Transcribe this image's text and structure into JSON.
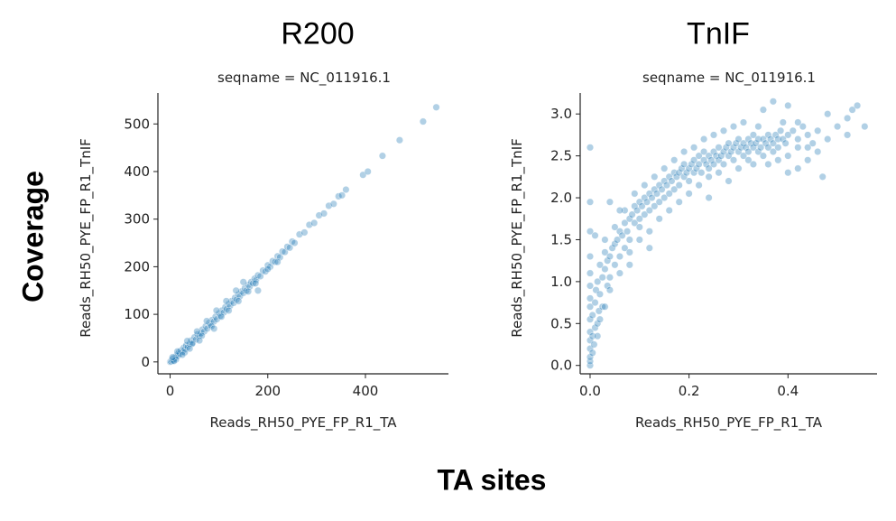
{
  "figure": {
    "ylabel": "Coverage",
    "xlabel": "TA sites"
  },
  "chart_data": [
    {
      "type": "scatter",
      "title": "R200",
      "facet_title": "seqname = NC_011916.1",
      "xlabel": "Reads_RH50_PYE_FP_R1_TA",
      "ylabel": "Reads_RH50_PYE_FP_R1_TnIF",
      "xlim": [
        -25,
        570
      ],
      "ylim": [
        -25,
        565
      ],
      "xticks": [
        0,
        200,
        400
      ],
      "yticks": [
        0,
        100,
        200,
        300,
        400,
        500
      ],
      "color": "#1f77b4",
      "points": [
        [
          0,
          0
        ],
        [
          1,
          1
        ],
        [
          2,
          1
        ],
        [
          3,
          4
        ],
        [
          4,
          2
        ],
        [
          5,
          6
        ],
        [
          6,
          3
        ],
        [
          8,
          9
        ],
        [
          10,
          7
        ],
        [
          12,
          11
        ],
        [
          14,
          15
        ],
        [
          16,
          13
        ],
        [
          18,
          20
        ],
        [
          20,
          17
        ],
        [
          22,
          24
        ],
        [
          25,
          21
        ],
        [
          28,
          30
        ],
        [
          30,
          26
        ],
        [
          33,
          35
        ],
        [
          36,
          31
        ],
        [
          40,
          38
        ],
        [
          43,
          45
        ],
        [
          46,
          40
        ],
        [
          50,
          52
        ],
        [
          53,
          47
        ],
        [
          56,
          58
        ],
        [
          60,
          55
        ],
        [
          63,
          60
        ],
        [
          66,
          68
        ],
        [
          70,
          64
        ],
        [
          73,
          75
        ],
        [
          76,
          70
        ],
        [
          80,
          82
        ],
        [
          83,
          78
        ],
        [
          86,
          88
        ],
        [
          90,
          85
        ],
        [
          93,
          95
        ],
        [
          96,
          90
        ],
        [
          100,
          102
        ],
        [
          103,
          97
        ],
        [
          106,
          108
        ],
        [
          110,
          104
        ],
        [
          113,
          115
        ],
        [
          116,
          111
        ],
        [
          120,
          122
        ],
        [
          123,
          118
        ],
        [
          126,
          128
        ],
        [
          130,
          124
        ],
        [
          133,
          135
        ],
        [
          136,
          131
        ],
        [
          140,
          142
        ],
        [
          143,
          138
        ],
        [
          146,
          148
        ],
        [
          150,
          145
        ],
        [
          153,
          155
        ],
        [
          156,
          150
        ],
        [
          160,
          162
        ],
        [
          163,
          158
        ],
        [
          166,
          168
        ],
        [
          170,
          165
        ],
        [
          173,
          175
        ],
        [
          176,
          172
        ],
        [
          180,
          182
        ],
        [
          185,
          180
        ],
        [
          190,
          192
        ],
        [
          195,
          190
        ],
        [
          200,
          203
        ],
        [
          205,
          200
        ],
        [
          210,
          212
        ],
        [
          215,
          210
        ],
        [
          220,
          222
        ],
        [
          225,
          220
        ],
        [
          230,
          232
        ],
        [
          235,
          231
        ],
        [
          240,
          242
        ],
        [
          245,
          240
        ],
        [
          250,
          253
        ],
        [
          255,
          250
        ],
        [
          265,
          268
        ],
        [
          275,
          272
        ],
        [
          285,
          288
        ],
        [
          295,
          292
        ],
        [
          305,
          308
        ],
        [
          315,
          312
        ],
        [
          325,
          328
        ],
        [
          335,
          332
        ],
        [
          345,
          348
        ],
        [
          352,
          350
        ],
        [
          360,
          362
        ],
        [
          395,
          393
        ],
        [
          405,
          400
        ],
        [
          435,
          433
        ],
        [
          470,
          466
        ],
        [
          518,
          505
        ],
        [
          545,
          535
        ],
        [
          12,
          5
        ],
        [
          30,
          20
        ],
        [
          45,
          38
        ],
        [
          65,
          55
        ],
        [
          85,
          75
        ],
        [
          105,
          95
        ],
        [
          120,
          108
        ],
        [
          140,
          128
        ],
        [
          160,
          148
        ],
        [
          175,
          165
        ],
        [
          15,
          22
        ],
        [
          35,
          44
        ],
        [
          55,
          64
        ],
        [
          75,
          86
        ],
        [
          95,
          108
        ],
        [
          115,
          128
        ],
        [
          135,
          150
        ],
        [
          150,
          168
        ],
        [
          200,
          195
        ],
        [
          180,
          150
        ],
        [
          220,
          210
        ],
        [
          90,
          70
        ],
        [
          60,
          45
        ],
        [
          40,
          28
        ],
        [
          25,
          15
        ],
        [
          8,
          2
        ],
        [
          5,
          10
        ]
      ]
    },
    {
      "type": "scatter",
      "title": "TnIF",
      "facet_title": "seqname = NC_011916.1",
      "xlabel": "Reads_RH50_PYE_FP_R1_TA",
      "ylabel": "Reads_RH50_PYE_FP_R1_TnIF",
      "xlim": [
        -0.02,
        0.58
      ],
      "ylim": [
        -0.1,
        3.25
      ],
      "xticks": [
        "0.0",
        "0.2",
        "0.4"
      ],
      "yticks": [
        "0.0",
        "0.5",
        "1.0",
        "1.5",
        "2.0",
        "2.5",
        "3.0"
      ],
      "color": "#1f77b4",
      "points": [
        [
          0,
          0
        ],
        [
          0,
          0.05
        ],
        [
          0,
          0.1
        ],
        [
          0,
          0.2
        ],
        [
          0,
          0.3
        ],
        [
          0,
          0.4
        ],
        [
          0,
          0.55
        ],
        [
          0,
          0.7
        ],
        [
          0,
          0.8
        ],
        [
          0,
          0.95
        ],
        [
          0,
          1.1
        ],
        [
          0,
          1.3
        ],
        [
          0,
          1.6
        ],
        [
          0,
          2.6
        ],
        [
          0.005,
          0.15
        ],
        [
          0.005,
          0.35
        ],
        [
          0.005,
          0.6
        ],
        [
          0.008,
          0.25
        ],
        [
          0.01,
          0.45
        ],
        [
          0.01,
          0.75
        ],
        [
          0.012,
          0.9
        ],
        [
          0.015,
          0.5
        ],
        [
          0.015,
          1.0
        ],
        [
          0.018,
          0.65
        ],
        [
          0.02,
          1.2
        ],
        [
          0.02,
          0.85
        ],
        [
          0.025,
          1.05
        ],
        [
          0.025,
          0.7
        ],
        [
          0.03,
          1.15
        ],
        [
          0.03,
          1.35
        ],
        [
          0.035,
          0.95
        ],
        [
          0.035,
          1.25
        ],
        [
          0.04,
          1.3
        ],
        [
          0.04,
          1.05
        ],
        [
          0.045,
          1.4
        ],
        [
          0.05,
          1.2
        ],
        [
          0.05,
          1.45
        ],
        [
          0.055,
          1.5
        ],
        [
          0.06,
          1.3
        ],
        [
          0.06,
          1.6
        ],
        [
          0.065,
          1.55
        ],
        [
          0.07,
          1.4
        ],
        [
          0.07,
          1.7
        ],
        [
          0.075,
          1.6
        ],
        [
          0.08,
          1.75
        ],
        [
          0.08,
          1.5
        ],
        [
          0.085,
          1.8
        ],
        [
          0.09,
          1.7
        ],
        [
          0.09,
          1.9
        ],
        [
          0.095,
          1.85
        ],
        [
          0.1,
          1.75
        ],
        [
          0.1,
          1.95
        ],
        [
          0.105,
          1.9
        ],
        [
          0.11,
          2.0
        ],
        [
          0.11,
          1.8
        ],
        [
          0.115,
          1.95
        ],
        [
          0.12,
          2.05
        ],
        [
          0.12,
          1.85
        ],
        [
          0.125,
          2.0
        ],
        [
          0.13,
          2.1
        ],
        [
          0.13,
          1.9
        ],
        [
          0.135,
          2.05
        ],
        [
          0.14,
          2.15
        ],
        [
          0.14,
          1.95
        ],
        [
          0.145,
          2.1
        ],
        [
          0.15,
          2.2
        ],
        [
          0.15,
          2.0
        ],
        [
          0.155,
          2.15
        ],
        [
          0.16,
          2.25
        ],
        [
          0.16,
          2.05
        ],
        [
          0.165,
          2.2
        ],
        [
          0.17,
          2.3
        ],
        [
          0.17,
          2.1
        ],
        [
          0.175,
          2.25
        ],
        [
          0.18,
          2.3
        ],
        [
          0.18,
          2.15
        ],
        [
          0.185,
          2.35
        ],
        [
          0.19,
          2.25
        ],
        [
          0.19,
          2.4
        ],
        [
          0.195,
          2.3
        ],
        [
          0.2,
          2.35
        ],
        [
          0.2,
          2.2
        ],
        [
          0.205,
          2.4
        ],
        [
          0.21,
          2.3
        ],
        [
          0.21,
          2.45
        ],
        [
          0.215,
          2.35
        ],
        [
          0.22,
          2.4
        ],
        [
          0.22,
          2.5
        ],
        [
          0.225,
          2.3
        ],
        [
          0.23,
          2.45
        ],
        [
          0.23,
          2.55
        ],
        [
          0.235,
          2.4
        ],
        [
          0.24,
          2.5
        ],
        [
          0.24,
          2.35
        ],
        [
          0.245,
          2.45
        ],
        [
          0.25,
          2.55
        ],
        [
          0.25,
          2.4
        ],
        [
          0.255,
          2.5
        ],
        [
          0.26,
          2.45
        ],
        [
          0.26,
          2.6
        ],
        [
          0.265,
          2.5
        ],
        [
          0.27,
          2.55
        ],
        [
          0.27,
          2.4
        ],
        [
          0.275,
          2.6
        ],
        [
          0.28,
          2.5
        ],
        [
          0.28,
          2.65
        ],
        [
          0.285,
          2.55
        ],
        [
          0.29,
          2.6
        ],
        [
          0.29,
          2.45
        ],
        [
          0.295,
          2.65
        ],
        [
          0.3,
          2.55
        ],
        [
          0.3,
          2.7
        ],
        [
          0.305,
          2.6
        ],
        [
          0.31,
          2.5
        ],
        [
          0.31,
          2.65
        ],
        [
          0.315,
          2.6
        ],
        [
          0.32,
          2.7
        ],
        [
          0.32,
          2.55
        ],
        [
          0.325,
          2.65
        ],
        [
          0.33,
          2.6
        ],
        [
          0.33,
          2.75
        ],
        [
          0.335,
          2.65
        ],
        [
          0.34,
          2.55
        ],
        [
          0.34,
          2.7
        ],
        [
          0.345,
          2.6
        ],
        [
          0.35,
          2.7
        ],
        [
          0.35,
          2.5
        ],
        [
          0.355,
          2.65
        ],
        [
          0.36,
          2.75
        ],
        [
          0.36,
          2.6
        ],
        [
          0.365,
          2.7
        ],
        [
          0.37,
          2.65
        ],
        [
          0.37,
          2.55
        ],
        [
          0.375,
          2.75
        ],
        [
          0.38,
          2.7
        ],
        [
          0.38,
          2.6
        ],
        [
          0.385,
          2.8
        ],
        [
          0.39,
          2.7
        ],
        [
          0.395,
          2.65
        ],
        [
          0.4,
          2.75
        ],
        [
          0.4,
          2.5
        ],
        [
          0.41,
          2.8
        ],
        [
          0.42,
          2.7
        ],
        [
          0.42,
          2.6
        ],
        [
          0.43,
          2.85
        ],
        [
          0.44,
          2.75
        ],
        [
          0.45,
          2.65
        ],
        [
          0.46,
          2.8
        ],
        [
          0.48,
          2.7
        ],
        [
          0.5,
          2.85
        ],
        [
          0.52,
          2.75
        ],
        [
          0.53,
          3.05
        ],
        [
          0.54,
          3.1
        ],
        [
          0.555,
          2.85
        ],
        [
          0.52,
          2.95
        ],
        [
          0.48,
          3.0
        ],
        [
          0.37,
          3.15
        ],
        [
          0.35,
          3.05
        ],
        [
          0.4,
          3.1
        ],
        [
          0.42,
          2.9
        ],
        [
          0.44,
          2.6
        ],
        [
          0.46,
          2.55
        ],
        [
          0.42,
          2.35
        ],
        [
          0.38,
          2.45
        ],
        [
          0.33,
          2.4
        ],
        [
          0.28,
          2.2
        ],
        [
          0.24,
          2.0
        ],
        [
          0.22,
          2.15
        ],
        [
          0.2,
          2.05
        ],
        [
          0.18,
          1.95
        ],
        [
          0.16,
          1.85
        ],
        [
          0.14,
          1.75
        ],
        [
          0.12,
          1.6
        ],
        [
          0.1,
          1.5
        ],
        [
          0.08,
          1.35
        ],
        [
          0.06,
          1.1
        ],
        [
          0.04,
          0.9
        ],
        [
          0.03,
          0.7
        ],
        [
          0.02,
          0.55
        ],
        [
          0.015,
          0.35
        ],
        [
          0.05,
          1.65
        ],
        [
          0.07,
          1.85
        ],
        [
          0.09,
          2.05
        ],
        [
          0.11,
          2.15
        ],
        [
          0.13,
          2.25
        ],
        [
          0.15,
          2.35
        ],
        [
          0.17,
          2.45
        ],
        [
          0.19,
          2.55
        ],
        [
          0.21,
          2.6
        ],
        [
          0.23,
          2.7
        ],
        [
          0.25,
          2.75
        ],
        [
          0.27,
          2.8
        ],
        [
          0.29,
          2.85
        ],
        [
          0.31,
          2.9
        ],
        [
          0.26,
          2.3
        ],
        [
          0.24,
          2.25
        ],
        [
          0.3,
          2.35
        ],
        [
          0.32,
          2.45
        ],
        [
          0.0,
          1.95
        ],
        [
          0.01,
          1.55
        ],
        [
          0.04,
          1.95
        ],
        [
          0.06,
          1.85
        ],
        [
          0.03,
          1.5
        ],
        [
          0.08,
          1.2
        ],
        [
          0.1,
          1.65
        ],
        [
          0.12,
          1.4
        ],
        [
          0.36,
          2.4
        ],
        [
          0.34,
          2.85
        ],
        [
          0.39,
          2.9
        ],
        [
          0.4,
          2.3
        ],
        [
          0.44,
          2.45
        ],
        [
          0.47,
          2.25
        ]
      ]
    }
  ]
}
